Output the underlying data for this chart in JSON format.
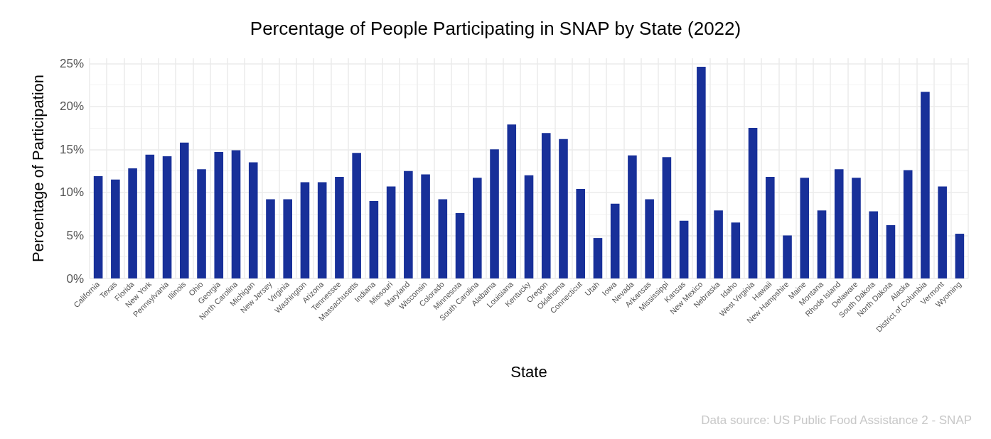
{
  "chart_data": {
    "type": "bar",
    "title": "Percentage of People Participating in SNAP by State (2022)",
    "xlabel": "State",
    "ylabel": "Percentage of Participation",
    "categories": [
      "California",
      "Texas",
      "Florida",
      "New York",
      "Pennsylvania",
      "Illinois",
      "Ohio",
      "Georgia",
      "North Carolina",
      "Michigan",
      "New Jersey",
      "Virginia",
      "Washington",
      "Arizona",
      "Tennessee",
      "Massachusetts",
      "Indiana",
      "Missouri",
      "Maryland",
      "Wisconsin",
      "Colorado",
      "Minnesota",
      "South Carolina",
      "Alabama",
      "Louisiana",
      "Kentucky",
      "Oregon",
      "Oklahoma",
      "Connecticut",
      "Utah",
      "Iowa",
      "Nevada",
      "Arkansas",
      "Mississippi",
      "Kansas",
      "New Mexico",
      "Nebraska",
      "Idaho",
      "West Virginia",
      "Hawaii",
      "New Hampshire",
      "Maine",
      "Montana",
      "Rhode Island",
      "Delaware",
      "South Dakota",
      "North Dakota",
      "Alaska",
      "District of Columbia",
      "Vermont",
      "Wyoming"
    ],
    "values": [
      11.9,
      11.5,
      12.8,
      14.4,
      14.2,
      15.8,
      12.7,
      14.7,
      14.9,
      13.5,
      9.2,
      9.2,
      11.2,
      11.2,
      11.8,
      14.6,
      9.0,
      10.7,
      12.5,
      12.1,
      9.2,
      7.6,
      11.7,
      15.0,
      17.9,
      12.0,
      16.9,
      16.2,
      10.4,
      4.7,
      8.7,
      14.3,
      9.2,
      14.1,
      6.7,
      24.6,
      7.9,
      6.5,
      17.5,
      11.8,
      5.0,
      11.7,
      7.9,
      12.7,
      11.7,
      7.8,
      6.2,
      12.6,
      21.7,
      10.7,
      5.2
    ],
    "color": "#183099",
    "ylim": [
      0,
      25.6
    ],
    "yticks": [
      {
        "value": 0,
        "label": "0%"
      },
      {
        "value": 5,
        "label": "5%"
      },
      {
        "value": 10,
        "label": "10%"
      },
      {
        "value": 15,
        "label": "15%"
      },
      {
        "value": 20,
        "label": "20%"
      },
      {
        "value": 25,
        "label": "25%"
      }
    ],
    "grid": true,
    "annotations": [
      "Data source: US Public Food Assistance 2 - SNAP"
    ]
  }
}
